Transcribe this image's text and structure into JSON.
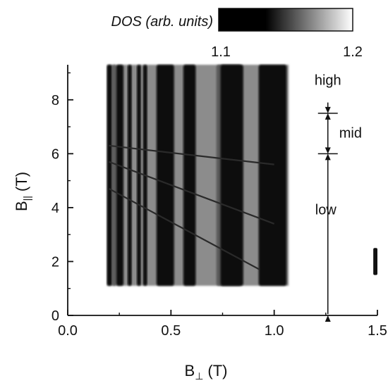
{
  "chart_data": {
    "type": "heatmap",
    "xlabel": "B",
    "xlabel_sub": "⊥",
    "xlabel_unit": "(T)",
    "ylabel": "B",
    "ylabel_sub": "||",
    "ylabel_unit": "(T)",
    "xlim": [
      0,
      1.5
    ],
    "ylim": [
      0,
      9.3
    ],
    "x_ticks": [
      0.0,
      0.5,
      1.0,
      1.5
    ],
    "x_tick_labels": [
      "0.0",
      "0.5",
      "1.0",
      "1.5"
    ],
    "y_ticks": [
      0,
      2,
      4,
      6,
      8
    ],
    "y_tick_labels": [
      "0",
      "2",
      "4",
      "6",
      "8"
    ],
    "data_extent": {
      "x": [
        0.19,
        1.07
      ],
      "y": [
        1.1,
        9.3
      ]
    },
    "colorbar": {
      "label": "DOS (arb. units)",
      "range": [
        1.1,
        1.2
      ],
      "tick_labels": [
        "1.1",
        "1.2"
      ],
      "colors": [
        "#000000",
        "#ffffff"
      ]
    },
    "stripes": [
      {
        "x0": 0.19,
        "x1": 0.215,
        "tone": "dark"
      },
      {
        "x0": 0.215,
        "x1": 0.235,
        "tone": "mid"
      },
      {
        "x0": 0.235,
        "x1": 0.27,
        "tone": "dark"
      },
      {
        "x0": 0.29,
        "x1": 0.31,
        "tone": "dark"
      },
      {
        "x0": 0.335,
        "x1": 0.355,
        "tone": "dark"
      },
      {
        "x0": 0.365,
        "x1": 0.385,
        "tone": "dark"
      },
      {
        "x0": 0.43,
        "x1": 0.515,
        "tone": "dark"
      },
      {
        "x0": 0.56,
        "x1": 0.62,
        "tone": "dark"
      },
      {
        "x0": 0.72,
        "x1": 0.84,
        "tone": "mid"
      },
      {
        "x0": 0.74,
        "x1": 0.85,
        "tone": "dark"
      },
      {
        "x0": 0.925,
        "x1": 1.06,
        "tone": "dark"
      }
    ],
    "right_sliver": {
      "x0": 1.48,
      "x1": 1.5,
      "y": [
        1.5,
        2.5
      ]
    },
    "fan_lines": [
      {
        "x": [
          0.2,
          1.0
        ],
        "y": [
          6.3,
          5.6
        ]
      },
      {
        "x": [
          0.2,
          1.0
        ],
        "y": [
          5.7,
          3.4
        ]
      },
      {
        "x": [
          0.2,
          0.93
        ],
        "y": [
          4.7,
          1.7
        ]
      }
    ],
    "regions": [
      {
        "label": "high",
        "y_from": 7.5,
        "y_to": 9.3
      },
      {
        "label": "mid",
        "y_from": 6.0,
        "y_to": 7.5
      },
      {
        "label": "low",
        "y_from": 0.0,
        "y_to": 6.0
      }
    ],
    "region_marker_x": 1.26,
    "region_boundaries": [
      6.0,
      7.5
    ]
  }
}
